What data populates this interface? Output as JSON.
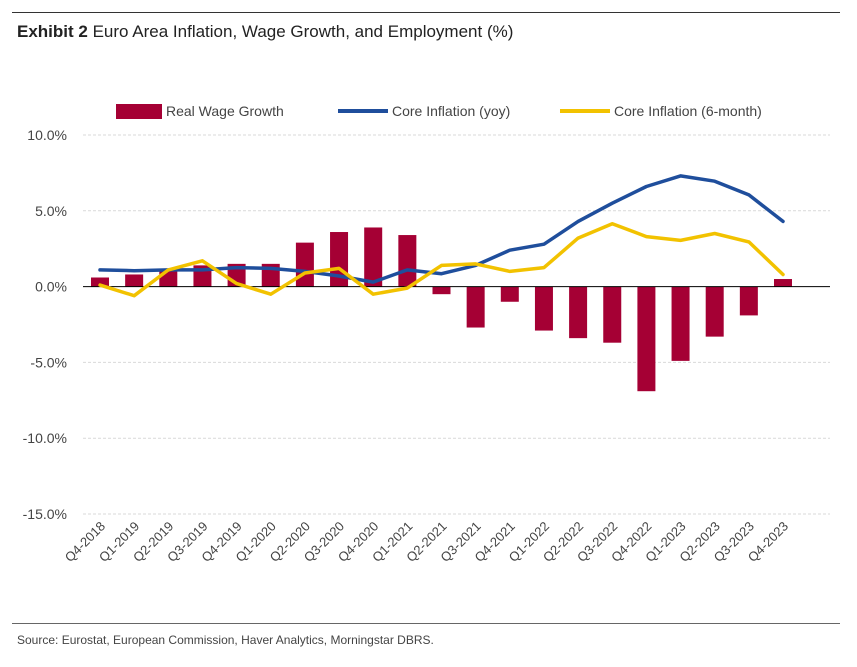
{
  "title_prefix": "Exhibit 2",
  "title_text": "Euro Area Inflation, Wage Growth, and Employment (%)",
  "source": "Source: Eurostat, European Commission, Haver Analytics, Morningstar DBRS.",
  "colors": {
    "real_wage": "#a50034",
    "core_yoy": "#1f4e9c",
    "core_6m": "#f2c200",
    "grid": "#d9d9d9",
    "axis": "#000000"
  },
  "chart_data": {
    "type": "bar",
    "categories": [
      "Q4-2018",
      "Q1-2019",
      "Q2-2019",
      "Q3-2019",
      "Q4-2019",
      "Q1-2020",
      "Q2-2020",
      "Q3-2020",
      "Q4-2020",
      "Q1-2021",
      "Q2-2021",
      "Q3-2021",
      "Q4-2021",
      "Q1-2022",
      "Q2-2022",
      "Q3-2022",
      "Q4-2022",
      "Q1-2023",
      "Q2-2023",
      "Q3-2023",
      "Q4-2023"
    ],
    "series": [
      {
        "name": "Real Wage Growth",
        "type": "bar",
        "values": [
          0.6,
          0.8,
          1.1,
          1.4,
          1.5,
          1.5,
          2.9,
          3.6,
          3.9,
          3.4,
          -0.5,
          -2.7,
          -1.0,
          -2.9,
          -3.4,
          -3.7,
          -6.9,
          -4.9,
          -3.3,
          -1.9,
          0.5
        ]
      },
      {
        "name": "Core Inflation (yoy)",
        "type": "line",
        "values": [
          1.1,
          1.05,
          1.1,
          1.1,
          1.25,
          1.2,
          1.0,
          0.7,
          0.3,
          1.1,
          0.85,
          1.4,
          2.4,
          2.8,
          4.3,
          5.5,
          6.6,
          7.3,
          6.95,
          6.05,
          4.3
        ]
      },
      {
        "name": "Core Inflation (6-month)",
        "type": "line",
        "values": [
          0.1,
          -0.6,
          1.1,
          1.7,
          0.2,
          -0.5,
          0.9,
          1.2,
          -0.5,
          -0.1,
          1.4,
          1.5,
          1.0,
          1.25,
          3.2,
          4.15,
          3.3,
          3.05,
          3.5,
          2.95,
          0.8
        ]
      }
    ],
    "legend": [
      "Real Wage Growth",
      "Core Inflation (yoy)",
      "Core Inflation (6-month)"
    ],
    "legend_position": "top",
    "yticks": [
      "10.0%",
      "5.0%",
      "0.0%",
      "-5.0%",
      "-10.0%",
      "-15.0%"
    ],
    "ytick_values": [
      10,
      5,
      0,
      -5,
      -10,
      -15
    ],
    "ylim": [
      -15,
      10
    ],
    "grid": "horizontal dashed",
    "xlabel": "",
    "ylabel": ""
  }
}
